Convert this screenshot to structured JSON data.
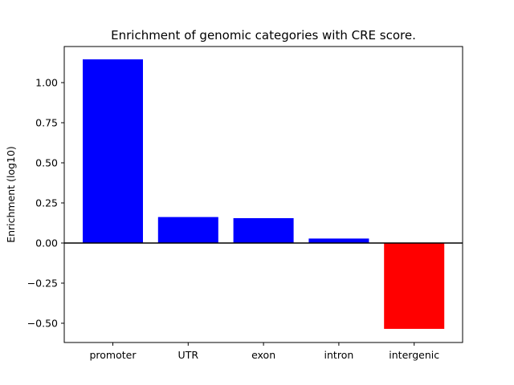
{
  "chart_data": {
    "type": "bar",
    "title": "Enrichment of genomic categories with CRE score.",
    "xlabel": "",
    "ylabel": "Enrichment (log10)",
    "categories": [
      "promoter",
      "UTR",
      "exon",
      "intron",
      "intergenic"
    ],
    "values": [
      1.145,
      0.162,
      0.155,
      0.028,
      -0.535
    ],
    "bar_colors": [
      "#0000ff",
      "#0000ff",
      "#0000ff",
      "#0000ff",
      "#ff0000"
    ],
    "ylim": [
      -0.62,
      1.225
    ],
    "yticks": [
      -0.5,
      -0.25,
      0.0,
      0.25,
      0.5,
      0.75,
      1.0
    ],
    "ytick_labels": [
      "−0.50",
      "−0.25",
      "0.00",
      "0.25",
      "0.50",
      "0.75",
      "1.00"
    ],
    "zero_line": true,
    "grid": false,
    "legend": false
  }
}
